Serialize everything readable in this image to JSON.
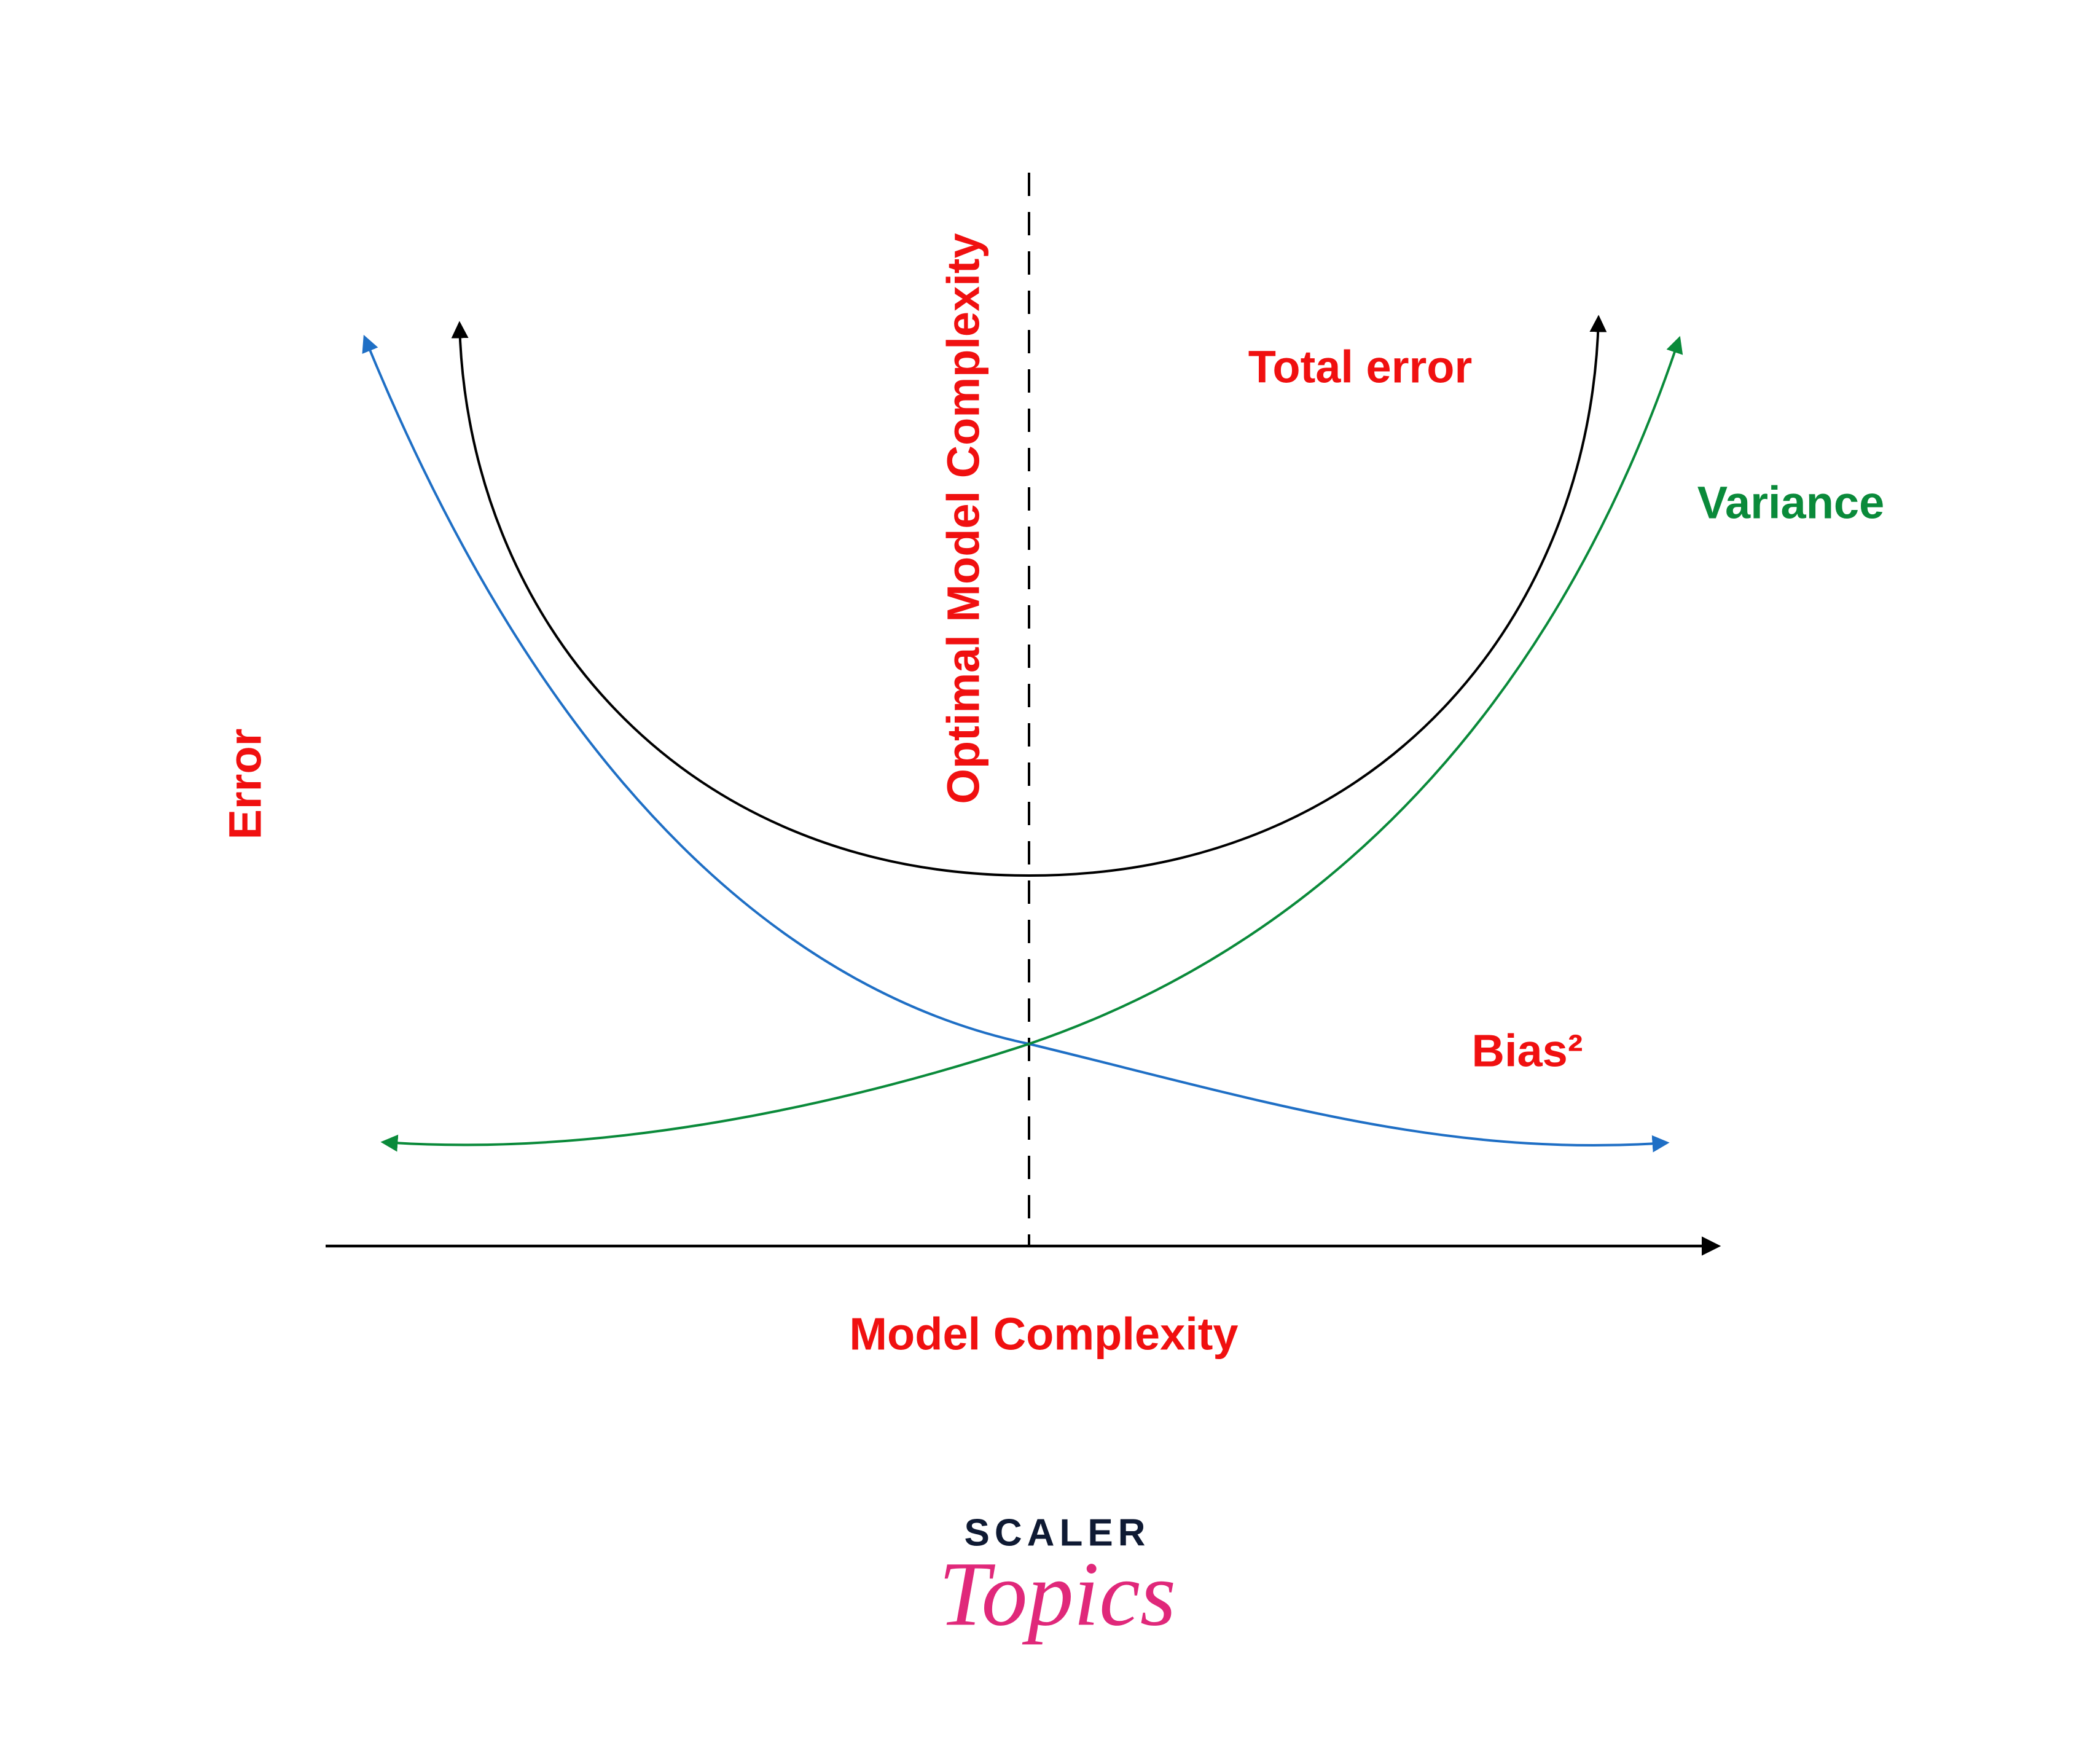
{
  "labels": {
    "optimal": "Optimal Model Complexity",
    "total_error": "Total error",
    "variance": "Variance",
    "y_axis": "Error",
    "bias": "Bias²",
    "x_axis": "Model Complexity"
  },
  "logo": {
    "brand": "SCALER",
    "product": "Topics"
  }
}
